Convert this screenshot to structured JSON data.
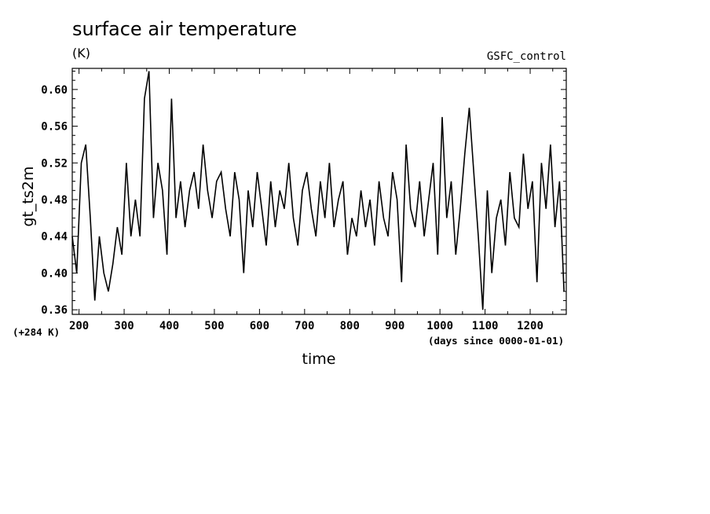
{
  "chart_data": {
    "type": "line",
    "title": "surface air temperature",
    "units": "(K)",
    "dataset": "GSFC_control",
    "xlabel": "time",
    "xunits": "(days since 0000-01-01)",
    "ylabel": "gt_ts2m",
    "yoffset_label": "(+284 K)",
    "xlim": [
      185,
      1280
    ],
    "ylim": [
      0.355,
      0.623
    ],
    "xticks": [
      200,
      300,
      400,
      500,
      600,
      700,
      800,
      900,
      1000,
      1100,
      1200
    ],
    "xtick_labels": [
      "200",
      "300",
      "400",
      "500",
      "600",
      "700",
      "800",
      "900",
      "1000",
      "1100",
      "1200"
    ],
    "yticks": [
      0.36,
      0.4,
      0.44,
      0.48,
      0.52,
      0.56,
      0.6
    ],
    "ytick_labels": [
      "0.36",
      "0.40",
      "0.44",
      "0.48",
      "0.52",
      "0.56",
      "0.60"
    ],
    "grid": false,
    "series": [
      {
        "x": [
          185,
          195,
          205,
          215,
          225,
          235,
          245,
          255,
          265,
          275,
          285,
          295,
          305,
          315,
          325,
          335,
          345,
          355,
          365,
          375,
          385,
          395,
          405,
          415,
          425,
          435,
          445,
          455,
          465,
          475,
          485,
          495,
          505,
          515,
          525,
          535,
          545,
          555,
          565,
          575,
          585,
          595,
          605,
          615,
          625,
          635,
          645,
          655,
          665,
          675,
          685,
          695,
          705,
          715,
          725,
          735,
          745,
          755,
          765,
          775,
          785,
          795,
          805,
          815,
          825,
          835,
          845,
          855,
          865,
          875,
          885,
          895,
          905,
          915,
          925,
          935,
          945,
          955,
          965,
          975,
          985,
          995,
          1005,
          1015,
          1025,
          1035,
          1045,
          1055,
          1065,
          1075,
          1085,
          1095,
          1105,
          1115,
          1125,
          1135,
          1145,
          1155,
          1165,
          1175,
          1185,
          1195,
          1205,
          1215,
          1225,
          1235,
          1245,
          1255,
          1265,
          1275
        ],
        "y": [
          0.44,
          0.4,
          0.52,
          0.54,
          0.46,
          0.37,
          0.44,
          0.4,
          0.38,
          0.41,
          0.45,
          0.42,
          0.52,
          0.44,
          0.48,
          0.44,
          0.59,
          0.62,
          0.46,
          0.52,
          0.49,
          0.42,
          0.59,
          0.46,
          0.5,
          0.45,
          0.49,
          0.51,
          0.47,
          0.54,
          0.49,
          0.46,
          0.5,
          0.51,
          0.47,
          0.44,
          0.51,
          0.48,
          0.4,
          0.49,
          0.45,
          0.51,
          0.47,
          0.43,
          0.5,
          0.45,
          0.49,
          0.47,
          0.52,
          0.46,
          0.43,
          0.49,
          0.51,
          0.47,
          0.44,
          0.5,
          0.46,
          0.52,
          0.45,
          0.48,
          0.5,
          0.42,
          0.46,
          0.44,
          0.49,
          0.45,
          0.48,
          0.43,
          0.5,
          0.46,
          0.44,
          0.51,
          0.48,
          0.39,
          0.54,
          0.47,
          0.45,
          0.5,
          0.44,
          0.48,
          0.52,
          0.42,
          0.57,
          0.46,
          0.5,
          0.42,
          0.47,
          0.53,
          0.58,
          0.51,
          0.44,
          0.36,
          0.49,
          0.4,
          0.46,
          0.48,
          0.43,
          0.51,
          0.46,
          0.45,
          0.53,
          0.47,
          0.5,
          0.39,
          0.52,
          0.47,
          0.54,
          0.45,
          0.5,
          0.38
        ]
      }
    ]
  }
}
